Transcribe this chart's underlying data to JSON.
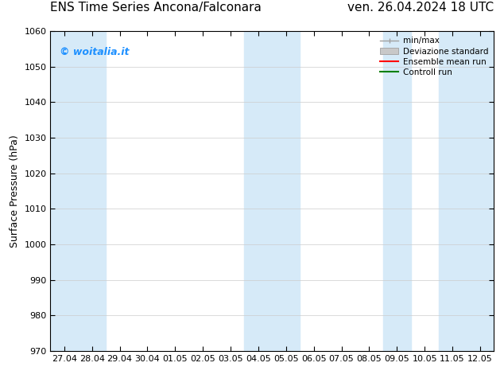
{
  "title_left": "ENS Time Series Ancona/Falconara",
  "title_right": "ven. 26.04.2024 18 UTC",
  "ylabel": "Surface Pressure (hPa)",
  "ylim": [
    970,
    1060
  ],
  "yticks": [
    970,
    980,
    990,
    1000,
    1010,
    1020,
    1030,
    1040,
    1050,
    1060
  ],
  "x_labels": [
    "27.04",
    "28.04",
    "29.04",
    "30.04",
    "01.05",
    "02.05",
    "03.05",
    "04.05",
    "05.05",
    "06.05",
    "07.05",
    "08.05",
    "09.05",
    "10.05",
    "11.05",
    "12.05"
  ],
  "shaded_band_color": "#d6eaf8",
  "bg_color": "#ffffff",
  "plot_bg_color": "#ffffff",
  "watermark_text": "© woitalia.it",
  "watermark_color": "#1e90ff",
  "legend_labels": [
    "min/max",
    "Deviazione standard",
    "Ensemble mean run",
    "Controll run"
  ],
  "shaded_ranges": [
    [
      0,
      2
    ],
    [
      7,
      9
    ],
    [
      12,
      13
    ],
    [
      14,
      16
    ]
  ],
  "title_fontsize": 11,
  "tick_fontsize": 8,
  "ylabel_fontsize": 9
}
